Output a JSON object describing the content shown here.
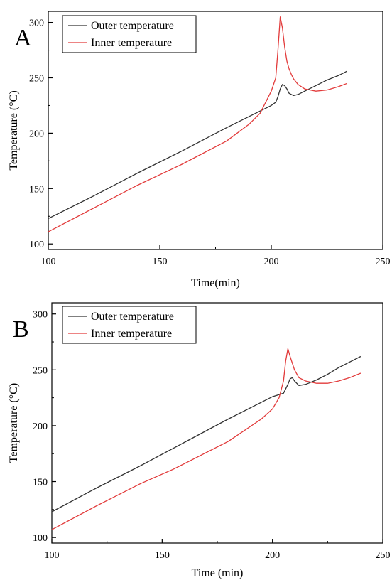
{
  "chart_data": [
    {
      "type": "line",
      "panel_label": "A",
      "xlabel": "Time(min)",
      "ylabel": "Temperature (°C)",
      "xlim": [
        100,
        250
      ],
      "ylim": [
        95,
        310
      ],
      "xticks": [
        100,
        150,
        200,
        250
      ],
      "yticks": [
        100,
        150,
        200,
        250,
        300
      ],
      "legend_position": "top-left",
      "series": [
        {
          "name": "Outer temperature",
          "color": "#333333",
          "x": [
            100,
            120,
            140,
            160,
            180,
            195,
            200,
            202,
            203,
            204,
            205,
            206,
            207,
            208,
            210,
            212,
            215,
            220,
            225,
            230,
            234
          ],
          "y": [
            123,
            143,
            164,
            184,
            205,
            220,
            225,
            228,
            233,
            240,
            244,
            243,
            240,
            236,
            234,
            235,
            238,
            243,
            248,
            252,
            256
          ]
        },
        {
          "name": "Inner temperature",
          "color": "#e23b3b",
          "x": [
            100,
            120,
            140,
            160,
            180,
            190,
            195,
            200,
            202,
            203,
            204,
            205,
            206,
            207,
            208,
            209,
            210,
            212,
            215,
            220,
            225,
            230,
            234
          ],
          "y": [
            111,
            132,
            153,
            172,
            193,
            208,
            218,
            238,
            250,
            275,
            305,
            295,
            278,
            265,
            258,
            253,
            249,
            244,
            240,
            238,
            239,
            242,
            245
          ]
        }
      ]
    },
    {
      "type": "line",
      "panel_label": "B",
      "xlabel": "Time (min)",
      "ylabel": "Temperature (°C)",
      "xlim": [
        100,
        250
      ],
      "ylim": [
        95,
        310
      ],
      "xticks": [
        100,
        150,
        200,
        250
      ],
      "yticks": [
        100,
        150,
        200,
        250,
        300
      ],
      "legend_position": "top-left",
      "series": [
        {
          "name": "Outer temperature",
          "color": "#333333",
          "x": [
            100,
            120,
            140,
            160,
            180,
            200,
            205,
            207,
            208,
            209,
            210,
            212,
            215,
            220,
            225,
            230,
            235,
            240
          ],
          "y": [
            123,
            144,
            164,
            185,
            206,
            226,
            229,
            237,
            242,
            243,
            240,
            236,
            237,
            241,
            246,
            252,
            257,
            262
          ]
        },
        {
          "name": "Inner temperature",
          "color": "#e23b3b",
          "x": [
            100,
            120,
            140,
            155,
            160,
            180,
            195,
            200,
            203,
            205,
            206,
            207,
            208,
            210,
            212,
            215,
            220,
            225,
            230,
            235,
            240
          ],
          "y": [
            107,
            128,
            148,
            161,
            166,
            186,
            206,
            215,
            225,
            240,
            258,
            269,
            262,
            250,
            243,
            240,
            238,
            238,
            240,
            243,
            247
          ]
        }
      ]
    }
  ]
}
